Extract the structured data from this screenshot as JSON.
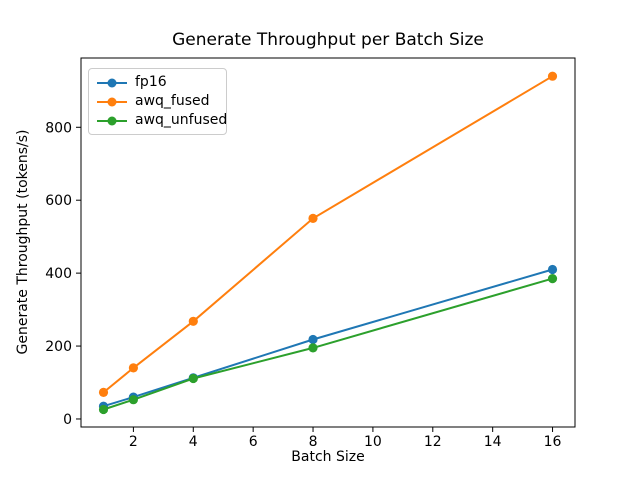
{
  "figure": {
    "background": "#ffffff",
    "axis_color": "#000000",
    "text_color": "#000000",
    "legend_border_color": "#cccccc"
  },
  "chart_data": {
    "type": "line",
    "title": "Generate Throughput per Batch Size",
    "xlabel": "Batch Size",
    "ylabel": "Generate Throughput (tokens/s)",
    "x": [
      1,
      2,
      4,
      8,
      16
    ],
    "series": [
      {
        "name": "fp16",
        "color": "#1f77b4",
        "values": [
          35,
          60,
          113,
          218,
          410
        ]
      },
      {
        "name": "awq_fused",
        "color": "#ff7f0e",
        "values": [
          73,
          140,
          268,
          550,
          940
        ]
      },
      {
        "name": "awq_unfused",
        "color": "#2ca02c",
        "values": [
          26,
          53,
          111,
          195,
          385
        ]
      }
    ],
    "xlim": [
      0.25,
      16.75
    ],
    "ylim": [
      -22,
      990
    ],
    "xticks": [
      2,
      4,
      6,
      8,
      10,
      12,
      14,
      16
    ],
    "yticks": [
      0,
      200,
      400,
      600,
      800
    ],
    "grid": false,
    "legend_position": "upper-left",
    "marker": "circle"
  }
}
